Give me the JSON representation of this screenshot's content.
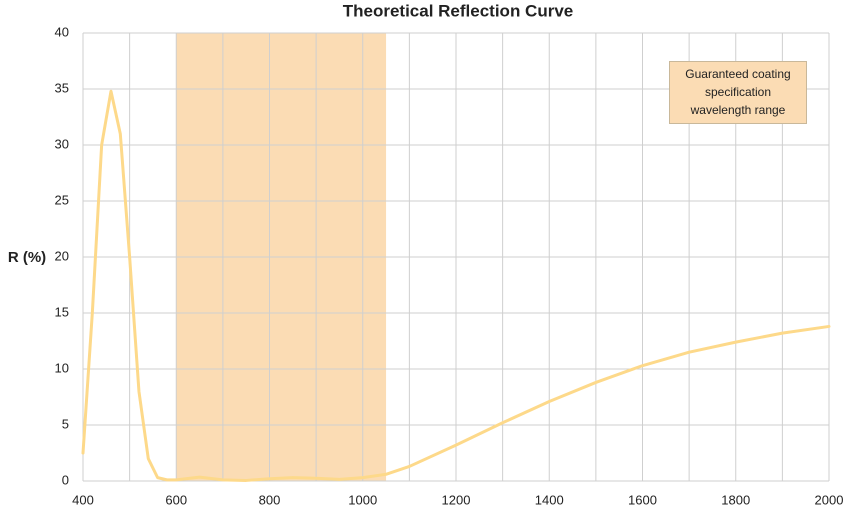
{
  "chart_data": {
    "type": "line",
    "title": "Theoretical Reflection Curve",
    "y_label": "R (%)",
    "annotation": "Guaranteed coating specification wavelength range",
    "shaded_range": [
      600,
      1050
    ],
    "shaded_color": "#fbdcb4",
    "x": [
      400,
      420,
      440,
      460,
      480,
      500,
      520,
      540,
      560,
      580,
      600,
      650,
      700,
      750,
      800,
      850,
      900,
      950,
      1000,
      1050,
      1100,
      1200,
      1300,
      1400,
      1500,
      1600,
      1700,
      1800,
      1900,
      2000
    ],
    "series": [
      {
        "color": "#fdd98a",
        "values": [
          2.5,
          15,
          30,
          34.8,
          31,
          20,
          8,
          2,
          0.3,
          0.1,
          0.1,
          0.35,
          0.1,
          0.05,
          0.2,
          0.3,
          0.25,
          0.15,
          0.3,
          0.6,
          1.3,
          3.2,
          5.2,
          7.1,
          8.8,
          10.3,
          11.5,
          12.4,
          13.2,
          13.8
        ]
      }
    ],
    "xlim": [
      400,
      2000
    ],
    "ylim": [
      0,
      40
    ],
    "xticks": [
      400,
      600,
      800,
      1000,
      1200,
      1400,
      1600,
      1800,
      2000
    ],
    "xminor_ticks": [
      500,
      700,
      900,
      1100,
      1300,
      1500,
      1700,
      1900
    ],
    "yticks": [
      0,
      5,
      10,
      15,
      20,
      25,
      30,
      35,
      40
    ],
    "grid": true
  }
}
